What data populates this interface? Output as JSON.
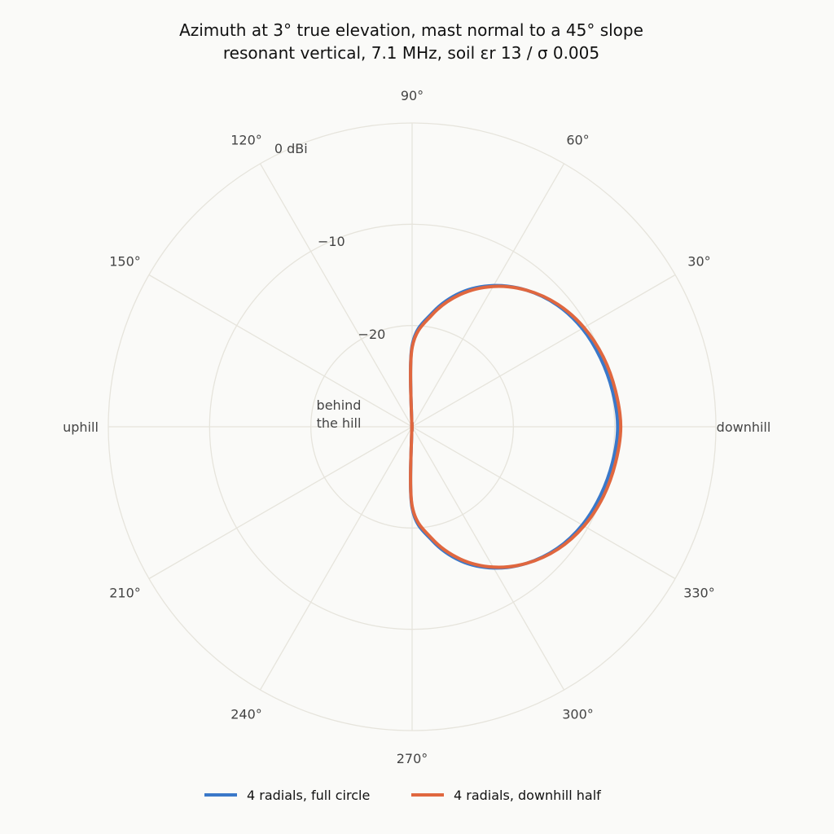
{
  "chart_data": {
    "type": "polar-line",
    "title": [
      "Azimuth at 3° true elevation, mast normal to a 45° slope",
      "resonant vertical, 7.1 MHz, soil εr 13 / σ 0.005"
    ],
    "r_unit": "dBi",
    "r_range": [
      -30,
      0
    ],
    "r_ticks": [
      {
        "value": -20,
        "label": "−20"
      },
      {
        "value": -10,
        "label": "−10"
      },
      {
        "value": 0,
        "label": "0 dBi"
      }
    ],
    "angle_ticks": [
      {
        "deg": 0,
        "label": "downhill"
      },
      {
        "deg": 30,
        "label": "30°"
      },
      {
        "deg": 60,
        "label": "60°"
      },
      {
        "deg": 90,
        "label": "90°"
      },
      {
        "deg": 120,
        "label": "120°"
      },
      {
        "deg": 150,
        "label": "150°"
      },
      {
        "deg": 180,
        "label": "uphill"
      },
      {
        "deg": 210,
        "label": "210°"
      },
      {
        "deg": 240,
        "label": "240°"
      },
      {
        "deg": 270,
        "label": "270°"
      },
      {
        "deg": 300,
        "label": "300°"
      },
      {
        "deg": 330,
        "label": "330°"
      }
    ],
    "annotation": [
      "behind",
      "the hill"
    ],
    "grid": true,
    "legend_position": "bottom",
    "series": [
      {
        "name": "4 radials, full circle",
        "color": "#3a78c9",
        "theta": [
          0,
          10,
          20,
          30,
          40,
          50,
          60,
          70,
          80,
          90,
          100,
          180,
          260,
          270,
          280,
          290,
          300,
          310,
          320,
          330,
          340,
          350,
          360
        ],
        "r": [
          -9.7,
          -9.9,
          -10.2,
          -10.6,
          -11.3,
          -12.4,
          -13.9,
          -15.9,
          -18.6,
          -22.0,
          -29.8,
          -30.0,
          -29.8,
          -22.0,
          -18.6,
          -15.9,
          -13.9,
          -12.4,
          -11.3,
          -10.6,
          -10.2,
          -9.9,
          -9.7
        ]
      },
      {
        "name": "4 radials, downhill half",
        "color": "#e0673f",
        "theta": [
          0,
          10,
          20,
          30,
          40,
          50,
          60,
          70,
          80,
          90,
          100,
          180,
          260,
          270,
          280,
          290,
          300,
          310,
          320,
          330,
          340,
          350,
          360
        ],
        "r": [
          -9.4,
          -9.6,
          -9.9,
          -10.4,
          -11.2,
          -12.4,
          -14.0,
          -16.1,
          -18.8,
          -22.2,
          -29.8,
          -30.0,
          -29.8,
          -22.2,
          -18.8,
          -16.1,
          -14.0,
          -12.4,
          -11.2,
          -10.4,
          -9.9,
          -9.6,
          -9.4
        ]
      }
    ]
  }
}
